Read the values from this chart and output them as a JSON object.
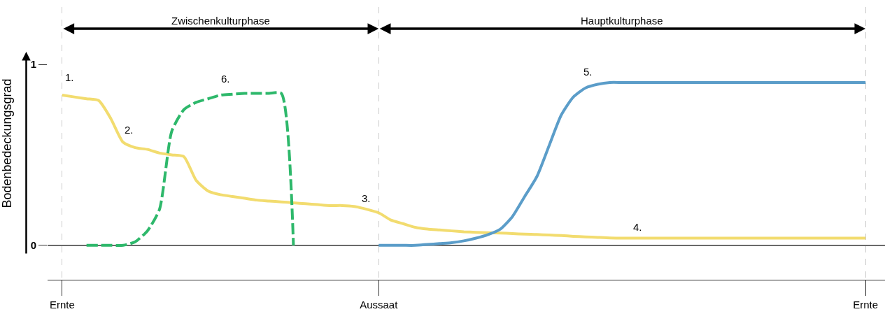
{
  "chart_data": {
    "type": "line",
    "ylabel": "Bodenbedeckungsgrad",
    "ylim": [
      -0.19,
      1.317
    ],
    "yticks": [
      0,
      1
    ],
    "grid": "x",
    "line_style": "solid",
    "categories": [
      "Ernte",
      null,
      null,
      null,
      null,
      null,
      null,
      null,
      null,
      null,
      null,
      null,
      null,
      null,
      null,
      null,
      null,
      null,
      null,
      null,
      null,
      null,
      null,
      null,
      null,
      null,
      "Aussaat",
      null,
      null,
      null,
      null,
      null,
      null,
      null,
      null,
      null,
      null,
      null,
      null,
      null,
      null,
      null,
      null,
      null,
      null,
      null,
      null,
      null,
      null,
      null,
      null,
      null,
      null,
      null,
      null,
      null,
      null,
      null,
      null,
      null,
      null,
      null,
      null,
      null,
      null,
      null,
      "Ernte"
    ],
    "series": [
      {
        "color": "#f2dc6f",
        "values": [
          0.83,
          0.82,
          0.81,
          0.8,
          0.7,
          0.57,
          0.54,
          0.53,
          0.51,
          0.5,
          0.49,
          0.36,
          0.3,
          0.28,
          0.27,
          0.26,
          0.25,
          0.245,
          0.24,
          0.235,
          0.23,
          0.225,
          0.22,
          0.22,
          0.215,
          0.2,
          0.18,
          0.14,
          0.12,
          0.1,
          0.09,
          0.085,
          0.08,
          0.075,
          0.072,
          0.07,
          0.068,
          0.065,
          0.062,
          0.06,
          0.057,
          0.054,
          0.05,
          0.047,
          0.044,
          0.041,
          0.04,
          0.04,
          0.04,
          0.04,
          0.04,
          0.04,
          0.04,
          0.04,
          0.04,
          0.04,
          0.04,
          0.04,
          0.04,
          0.04,
          0.04,
          0.04,
          0.04,
          0.04,
          0.04,
          0.04,
          0.04
        ]
      },
      {
        "color": "#5b9dc9",
        "values": [
          null,
          null,
          null,
          null,
          null,
          null,
          null,
          null,
          null,
          null,
          null,
          null,
          null,
          null,
          null,
          null,
          null,
          null,
          null,
          null,
          null,
          null,
          null,
          null,
          null,
          null,
          0,
          0,
          0,
          0,
          0.005,
          0.01,
          0.015,
          0.025,
          0.04,
          0.06,
          0.09,
          0.16,
          0.27,
          0.38,
          0.55,
          0.72,
          0.82,
          0.87,
          0.89,
          0.9,
          0.9,
          0.9,
          0.9,
          0.9,
          0.9,
          0.9,
          0.9,
          0.9,
          0.9,
          0.9,
          0.9,
          0.9,
          0.9,
          0.9,
          0.9,
          0.9,
          0.9,
          0.9,
          0.9,
          0.9,
          0.9
        ]
      },
      {
        "color": "#2eb86b",
        "line_style": "dashed",
        "values": [
          null,
          null,
          0,
          0,
          0,
          0,
          0.02,
          0.08,
          0.2,
          0.63,
          0.75,
          0.79,
          0.81,
          0.83,
          0.835,
          0.84,
          0.84,
          0.84,
          0.84,
          0,
          null,
          null,
          null,
          null,
          null,
          null,
          null,
          null,
          null,
          null,
          null,
          null,
          null,
          null,
          null,
          null,
          null,
          null,
          null,
          null,
          null,
          null,
          null,
          null,
          null,
          null,
          null,
          null,
          null,
          null,
          null,
          null,
          null,
          null,
          null,
          null,
          null,
          null,
          null,
          null,
          null,
          null,
          null,
          null,
          null,
          null,
          null
        ]
      }
    ],
    "ref_lines": [
      {
        "axis": "y",
        "value": 0,
        "color": "#333333"
      }
    ],
    "annotations": [
      "Zwischenkulturphase",
      "Hauptkulturphase",
      "1.",
      "2.",
      "3.",
      "4.",
      "5.",
      "6."
    ]
  }
}
